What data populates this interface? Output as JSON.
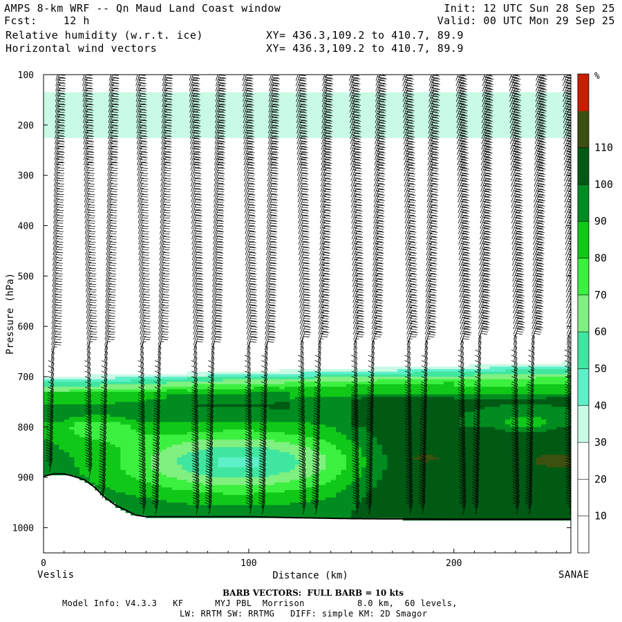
{
  "header": {
    "title": "AMPS 8-km WRF -- Qn Maud Land Coast window",
    "fcst_label": "Fcst:",
    "fcst_value": "12 h",
    "init": "Init: 12 UTC Sun 28 Sep 25",
    "valid": "Valid: 00 UTC Mon 29 Sep 25",
    "field1": "Relative humidity (w.r.t. ice)",
    "field2": "Horizontal wind vectors",
    "xy1": "XY= 436.3,109.2 to 410.7, 89.9",
    "xy2": "XY= 436.3,109.2 to 410.7, 89.9"
  },
  "footer": {
    "start_label": "Veslis",
    "end_label": "SANAE",
    "barb_note": "BARB VECTORS:  FULL BARB = 10 kts",
    "model_info": "Model Info: V4.3.3   KF      MYJ PBL  Morrison          8.0 km,  60 levels,",
    "model_info2": "LW: RRTM SW: RRTMG   DIFF: simple KM: 2D Smagor"
  },
  "chart_data": {
    "type": "heatmap",
    "title": "Relative humidity (w.r.t. ice)",
    "xlabel": "Distance (km)",
    "ylabel": "Pressure (hPa)",
    "xlim": [
      0,
      257
    ],
    "ylim": [
      1050,
      100
    ],
    "x_ticks": [
      0,
      100,
      200
    ],
    "y_ticks": [
      100,
      200,
      300,
      400,
      500,
      600,
      700,
      800,
      900,
      1000
    ],
    "colorbar": {
      "unit": "%",
      "levels": [
        0,
        10,
        20,
        30,
        40,
        50,
        60,
        70,
        80,
        90,
        100,
        110,
        120
      ],
      "labels": [
        10,
        20,
        30,
        40,
        50,
        60,
        70,
        80,
        90,
        100,
        110
      ],
      "colors": [
        "#ffffff",
        "#ffffff",
        "#ffffff",
        "#c8fae6",
        "#5ef0c8",
        "#40e6a0",
        "#80f080",
        "#3cf040",
        "#10c818",
        "#008c20",
        "#005a14",
        "#3c5010",
        "#c81e00"
      ]
    },
    "terrain_pressure": {
      "x": [
        0,
        5,
        10,
        15,
        20,
        25,
        30,
        35,
        40,
        45,
        50,
        60,
        80,
        100,
        120,
        150,
        200,
        257
      ],
      "p": [
        898,
        893,
        893,
        898,
        905,
        920,
        940,
        955,
        965,
        975,
        978,
        978,
        978,
        978,
        980,
        982,
        983,
        983
      ]
    },
    "rh_regions": [
      {
        "name": "upper cloud band",
        "x": [
          0,
          257
        ],
        "p_top": 135,
        "p_bottom": 225,
        "rh": 33
      },
      {
        "name": "lower moist layer",
        "x": [
          0,
          257
        ],
        "p_top": 660,
        "p_bottom": 980,
        "rh_range": [
          30,
          115
        ]
      }
    ],
    "wind": {
      "barb_full_kts": 10,
      "columns_x": [
        6,
        19,
        32,
        45,
        58,
        71,
        84,
        97,
        110,
        123,
        136,
        149,
        162,
        175,
        188,
        201,
        214,
        227,
        240,
        253
      ],
      "flow": "westerly aloft, easterly in lower moist layer"
    }
  }
}
